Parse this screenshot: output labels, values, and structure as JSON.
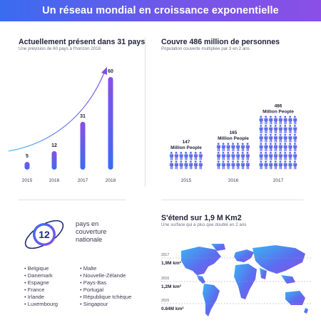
{
  "header": {
    "title": "Un réseau mondial en croissance exponentielle"
  },
  "countries_chart": {
    "title": "Actuellement présent dans 31 pays",
    "subtitle": "Une prévision de 60 pays à l'horizon 2018"
  },
  "people_chart": {
    "title": "Couvre 486 million de personnes",
    "subtitle": "Population couverte multipliée par 3 en 2 ans"
  },
  "national": {
    "count": "12",
    "label": "pays en couverture nationale",
    "list_left": [
      "Belgique",
      "Danemark",
      "Espagne",
      "France",
      "Irlande",
      "Luxembourg"
    ],
    "list_right": [
      "Malte",
      "Nouvelle-Zélande",
      "Pays-Bas",
      "Portugal",
      "République tchèque",
      "Singapour"
    ]
  },
  "area": {
    "title": "S'étend sur 1,9 M Km2",
    "subtitle": "Une surface qui a plus que doublé en 2 ans"
  },
  "colors": {
    "blue": "#3a6cf0",
    "violet": "#8a4fe6",
    "cyan": "#4fc3f7",
    "navy": "#1e2b78"
  },
  "chart_data": [
    {
      "type": "bar",
      "title": "Actuellement présent dans 31 pays",
      "categories": [
        "2015",
        "2016",
        "2017",
        "2018"
      ],
      "values": [
        5,
        12,
        31,
        60
      ],
      "data_labels": [
        "5",
        "12",
        "31",
        "60"
      ],
      "ylim": [
        0,
        60
      ]
    },
    {
      "type": "bar",
      "title": "Couvre 486 million de personnes",
      "categories": [
        "2015",
        "2016",
        "2017"
      ],
      "values": [
        147,
        165,
        486
      ],
      "data_labels": [
        "147",
        "165",
        "486"
      ],
      "value_unit_label": "Million People",
      "icon": "person-icon"
    },
    {
      "type": "bar",
      "title": "S'étend sur 1,9 M Km2",
      "categories": [
        "2017",
        "2016",
        "2015"
      ],
      "values": [
        1.9,
        1.2,
        0.84
      ],
      "data_labels": [
        "1,9M km²",
        "1,2M km²",
        "0.84M km²"
      ],
      "icon": "world-map-icon"
    }
  ]
}
